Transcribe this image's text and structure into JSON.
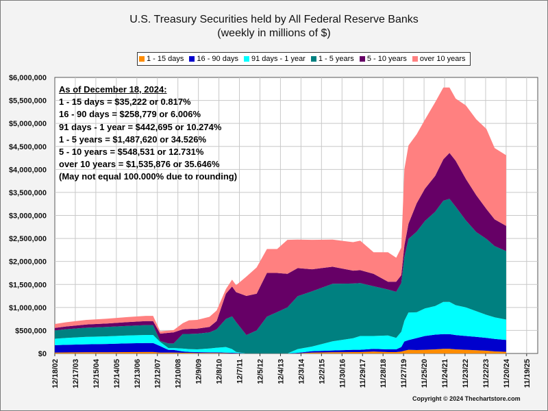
{
  "chart_data": {
    "type": "area",
    "stacked": true,
    "title": "U.S. Treasury Securities held by All Federal Reserve Banks",
    "subtitle": "(weekly in millions of $)",
    "ylim": [
      0,
      6000000
    ],
    "y_ticks": [
      "$0",
      "$500,000",
      "$1,000,000",
      "$1,500,000",
      "$2,000,000",
      "$2,500,000",
      "$3,000,000",
      "$3,500,000",
      "$4,000,000",
      "$4,500,000",
      "$5,000,000",
      "$5,500,000",
      "$6,000,000"
    ],
    "x_ticks": [
      "12/18/02",
      "12/17/03",
      "12/15/04",
      "12/14/05",
      "12/13/06",
      "12/12/07",
      "12/10/08",
      "12/9/09",
      "12/8/10",
      "12/7/11",
      "12/5/12",
      "12/4/13",
      "12/3/14",
      "12/2/15",
      "11/30/16",
      "11/29/17",
      "11/28/18",
      "11/27/19",
      "11/25/20",
      "11/24/21",
      "11/23/22",
      "11/22/23",
      "11/20/24",
      "11/19/25"
    ],
    "grid": true,
    "legend_position": "top",
    "x": [
      2002.96,
      2003.5,
      2004.5,
      2005.5,
      2006.5,
      2007.4,
      2007.75,
      2008.1,
      2008.5,
      2008.75,
      2009.2,
      2009.5,
      2009.9,
      2010.5,
      2010.85,
      2011.3,
      2011.6,
      2011.8,
      2012.3,
      2012.8,
      2013.3,
      2013.8,
      2014.3,
      2014.8,
      2015.5,
      2016.5,
      2017.5,
      2017.85,
      2018.5,
      2019.2,
      2019.6,
      2019.85,
      2020.0,
      2020.2,
      2020.6,
      2021.0,
      2021.5,
      2021.9,
      2022.2,
      2022.5,
      2023.0,
      2023.5,
      2024.0,
      2024.4,
      2024.96
    ],
    "series": [
      {
        "name": "1 - 15 days",
        "color": "#ff8c00",
        "values": [
          20000,
          22000,
          25000,
          27000,
          30000,
          32000,
          32000,
          20000,
          18000,
          18000,
          15000,
          15000,
          12000,
          12000,
          10000,
          8000,
          5000,
          5000,
          0,
          0,
          0,
          0,
          0,
          5000,
          20000,
          25000,
          30000,
          30000,
          40000,
          30000,
          30000,
          40000,
          60000,
          80000,
          75000,
          80000,
          90000,
          100000,
          100000,
          90000,
          80000,
          70000,
          60000,
          45000,
          35222
        ]
      },
      {
        "name": "16 - 90 days",
        "color": "#0000cd",
        "values": [
          160000,
          165000,
          175000,
          180000,
          190000,
          195000,
          195000,
          140000,
          60000,
          60000,
          30000,
          20000,
          18000,
          15000,
          15000,
          12000,
          10000,
          8000,
          0,
          0,
          0,
          0,
          0,
          10000,
          30000,
          40000,
          50000,
          50000,
          60000,
          60000,
          60000,
          100000,
          200000,
          210000,
          260000,
          300000,
          320000,
          320000,
          320000,
          310000,
          300000,
          290000,
          280000,
          270000,
          258779
        ]
      },
      {
        "name": "91 days - 1 year",
        "color": "#00ffff",
        "values": [
          140000,
          150000,
          160000,
          165000,
          170000,
          175000,
          175000,
          90000,
          40000,
          40000,
          60000,
          60000,
          60000,
          80000,
          100000,
          120000,
          80000,
          20000,
          0,
          0,
          0,
          0,
          0,
          80000,
          100000,
          200000,
          250000,
          300000,
          280000,
          300000,
          250000,
          330000,
          450000,
          600000,
          560000,
          600000,
          620000,
          700000,
          700000,
          650000,
          620000,
          560000,
          500000,
          470000,
          442695
        ]
      },
      {
        "name": "1 - 5 years",
        "color": "#008080",
        "values": [
          180000,
          190000,
          200000,
          205000,
          210000,
          215000,
          215000,
          20000,
          100000,
          100000,
          320000,
          330000,
          340000,
          350000,
          400000,
          610000,
          710000,
          650000,
          400000,
          500000,
          800000,
          900000,
          1000000,
          1150000,
          1200000,
          1250000,
          1190000,
          1150000,
          1080000,
          1000000,
          1000000,
          1060000,
          1390000,
          1600000,
          1750000,
          1900000,
          2050000,
          2200000,
          2240000,
          2140000,
          1890000,
          1720000,
          1650000,
          1550000,
          1487620
        ]
      },
      {
        "name": "5 - 10 years",
        "color": "#660066",
        "values": [
          55000,
          60000,
          70000,
          75000,
          80000,
          85000,
          85000,
          160000,
          230000,
          240000,
          100000,
          110000,
          110000,
          120000,
          180000,
          550000,
          650000,
          650000,
          850000,
          800000,
          950000,
          850000,
          730000,
          610000,
          480000,
          370000,
          280000,
          280000,
          270000,
          170000,
          220000,
          170000,
          240000,
          330000,
          620000,
          700000,
          780000,
          900000,
          1000000,
          1000000,
          900000,
          800000,
          650000,
          580000,
          548531
        ]
      },
      {
        "name": "over 10 years",
        "color": "#ff8080",
        "values": [
          85000,
          90000,
          100000,
          103000,
          110000,
          115000,
          115000,
          50000,
          50000,
          50000,
          135000,
          185000,
          190000,
          220000,
          230000,
          100000,
          150000,
          150000,
          420000,
          570000,
          520000,
          520000,
          740000,
          620000,
          640000,
          590000,
          620000,
          640000,
          470000,
          640000,
          520000,
          600000,
          1660000,
          1700000,
          1500000,
          1500000,
          1600000,
          1560000,
          1420000,
          1350000,
          1600000,
          1650000,
          1740000,
          1550000,
          1535876
        ]
      }
    ],
    "annotation": {
      "heading": "As of December 18, 2024:",
      "lines": [
        "1 - 15 days = $35,222 or 0.817%",
        "16 - 90 days = $258,779 or 6.006%",
        "91 days - 1 year = $442,695 or 10.274%",
        "1 - 5 years = $1,487,620 or 34.526%",
        "5 - 10 years = $548,531 or 12.731%",
        "over 10 years = $1,535,876 or 35.646%",
        "(May not equal 100.000% due to rounding)"
      ]
    },
    "copyright": "Copyright © 2024 Thechartstore.com"
  }
}
